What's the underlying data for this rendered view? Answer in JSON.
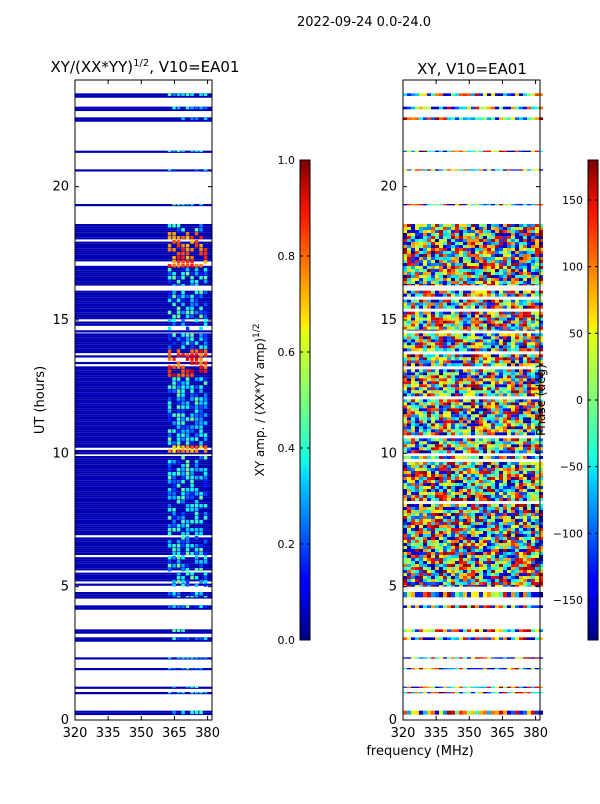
{
  "suptitle": "2022-09-24 0.0-24.0",
  "shared_xlabel": "frequency (MHz)",
  "colors": {
    "ink": "#000000",
    "background": "#ffffff",
    "blank_rows": "#000080"
  },
  "chart_data": [
    {
      "type": "heatmap",
      "title_base": "XY/(XX*YY)",
      "title_exp": "1/2",
      "title_suffix": ", V10=EA01",
      "ylabel": "UT (hours)",
      "xlabel": "frequency (MHz)",
      "xlim": [
        320,
        382
      ],
      "ylim": [
        0,
        24
      ],
      "xticks": [
        320,
        335,
        350,
        365,
        380
      ],
      "yticks": [
        0,
        5,
        10,
        15,
        20
      ],
      "colorbar": {
        "label": "XY amp. / (XX*YY amp)",
        "label_exp": "1/2",
        "range": [
          0.0,
          1.0
        ],
        "ticks": [
          "0.0",
          "0.2",
          "0.4",
          "0.6",
          "0.8",
          "1.0"
        ],
        "colormap": "jet"
      },
      "bands": [
        {
          "ut": [
            0.2,
            0.35
          ],
          "level": 0.05
        },
        {
          "ut": [
            1.0,
            1.05
          ],
          "level": 0.05
        },
        {
          "ut": [
            1.2,
            1.25
          ],
          "level": 0.05
        },
        {
          "ut": [
            1.9,
            1.95
          ],
          "level": 0.05
        },
        {
          "ut": [
            2.3,
            2.35
          ],
          "level": 0.05
        },
        {
          "ut": [
            3.0,
            3.1
          ],
          "level": 0.05
        },
        {
          "ut": [
            3.3,
            3.4
          ],
          "level": 0.05
        },
        {
          "ut": [
            4.2,
            4.3
          ],
          "level": 0.05
        },
        {
          "ut": [
            4.6,
            4.8
          ],
          "level": 0.05
        },
        {
          "ut": [
            5.0,
            9.9
          ],
          "level": 0.05,
          "striped": true
        },
        {
          "ut": [
            10.0,
            14.5
          ],
          "level": 0.05,
          "striped": true
        },
        {
          "ut": [
            14.6,
            16.1
          ],
          "level": 0.05,
          "striped": true
        },
        {
          "ut": [
            16.3,
            18.6
          ],
          "level": 0.05,
          "striped": true
        },
        {
          "ut": [
            19.3,
            19.35
          ],
          "level": 0.05
        },
        {
          "ut": [
            20.6,
            20.65
          ],
          "level": 0.05
        },
        {
          "ut": [
            21.3,
            21.35
          ],
          "level": 0.05
        },
        {
          "ut": [
            22.5,
            22.6
          ],
          "level": 0.05
        },
        {
          "ut": [
            22.9,
            23.0
          ],
          "level": 0.05
        },
        {
          "ut": [
            23.4,
            23.5
          ],
          "level": 0.05
        }
      ],
      "hot_region_mhz": [
        362,
        380
      ],
      "hot_spots": [
        {
          "ut": [
            12.9,
            13.9
          ],
          "level": 0.78
        },
        {
          "ut": [
            17.1,
            18.4
          ],
          "level": 0.72
        },
        {
          "ut": [
            9.9,
            10.3
          ],
          "level": 0.68
        }
      ]
    },
    {
      "type": "heatmap",
      "title": "XY, V10=EA01",
      "ylabel": "",
      "xlabel": "frequency (MHz)",
      "xlim": [
        320,
        382
      ],
      "ylim": [
        0,
        24
      ],
      "xticks": [
        320,
        335,
        350,
        365,
        380
      ],
      "yticks": [
        0,
        5,
        10,
        15,
        20
      ],
      "colorbar": {
        "label": "Phase (deg)",
        "range": [
          -180,
          180
        ],
        "ticks": [
          "−150",
          "−100",
          "−50",
          "0",
          "50",
          "100",
          "150"
        ],
        "tick_values": [
          -150,
          -100,
          -50,
          0,
          50,
          100,
          150
        ],
        "colormap": "jet"
      },
      "bands": [
        {
          "ut": [
            0.2,
            0.35
          ]
        },
        {
          "ut": [
            1.0,
            1.05
          ]
        },
        {
          "ut": [
            1.2,
            1.25
          ]
        },
        {
          "ut": [
            1.9,
            1.95
          ]
        },
        {
          "ut": [
            2.3,
            2.35
          ]
        },
        {
          "ut": [
            3.0,
            3.1
          ]
        },
        {
          "ut": [
            3.3,
            3.4
          ]
        },
        {
          "ut": [
            4.2,
            4.3
          ]
        },
        {
          "ut": [
            4.6,
            4.8
          ]
        },
        {
          "ut": [
            5.0,
            9.9
          ],
          "dense": true
        },
        {
          "ut": [
            10.0,
            14.5
          ],
          "dense": true
        },
        {
          "ut": [
            14.6,
            16.1
          ],
          "dense": true
        },
        {
          "ut": [
            16.3,
            18.6
          ],
          "dense": true
        },
        {
          "ut": [
            19.3,
            19.35
          ]
        },
        {
          "ut": [
            20.6,
            20.65
          ]
        },
        {
          "ut": [
            21.3,
            21.35
          ]
        },
        {
          "ut": [
            22.5,
            22.6
          ]
        },
        {
          "ut": [
            22.9,
            23.0
          ]
        },
        {
          "ut": [
            23.4,
            23.5
          ]
        }
      ]
    }
  ]
}
